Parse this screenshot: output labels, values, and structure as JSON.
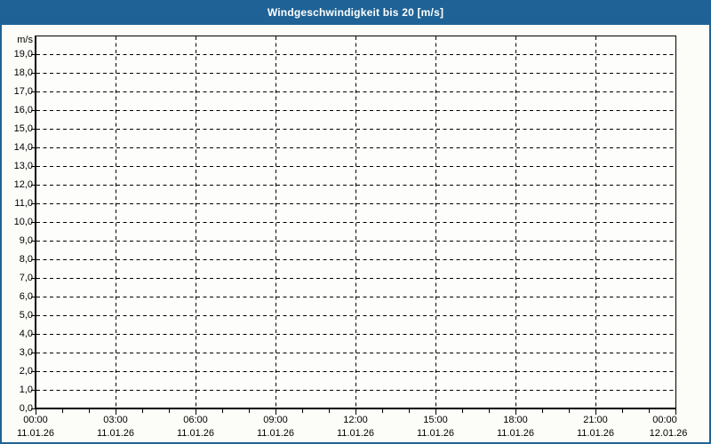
{
  "window": {
    "title": "Windgeschwindigkeit bis 20 [m/s]"
  },
  "colors": {
    "titlebar_bg": "#1F6396",
    "titlebar_text": "#FFFFFF",
    "frame_border": "#1F6396",
    "page_bg": "#FCFDF8",
    "plot_bg": "#FDFEFB",
    "axis": "#000000",
    "grid": "#000000",
    "label_text": "#000000"
  },
  "chart_data": {
    "type": "line",
    "title": "Windgeschwindigkeit bis 20 [m/s]",
    "xlabel": "",
    "ylabel": "m/s",
    "ylim": [
      0,
      20
    ],
    "x_range_hours": [
      0,
      24
    ],
    "grid": "dashed",
    "legend": "none",
    "y_tick_step": 1,
    "y_axis_top_label": "m/s",
    "y_tick_labels": [
      "0,0",
      "1,0",
      "2,0",
      "3,0",
      "4,0",
      "5,0",
      "6,0",
      "7,0",
      "8,0",
      "9,0",
      "10,0",
      "11,0",
      "12,0",
      "13,0",
      "14,0",
      "15,0",
      "16,0",
      "17,0",
      "18,0",
      "19,0"
    ],
    "x_minor_tick_hours": 1,
    "x_major_ticks": [
      {
        "hour": 0,
        "time": "00:00",
        "date": "11.01.26"
      },
      {
        "hour": 3,
        "time": "03:00",
        "date": "11.01.26"
      },
      {
        "hour": 6,
        "time": "06:00",
        "date": "11.01.26"
      },
      {
        "hour": 9,
        "time": "09:00",
        "date": "11.01.26"
      },
      {
        "hour": 12,
        "time": "12:00",
        "date": "11.01.26"
      },
      {
        "hour": 15,
        "time": "15:00",
        "date": "11.01.26"
      },
      {
        "hour": 18,
        "time": "18:00",
        "date": "11.01.26"
      },
      {
        "hour": 21,
        "time": "21:00",
        "date": "11.01.26"
      },
      {
        "hour": 24,
        "time": "00:00",
        "date": "12.01.26"
      }
    ],
    "series": []
  }
}
